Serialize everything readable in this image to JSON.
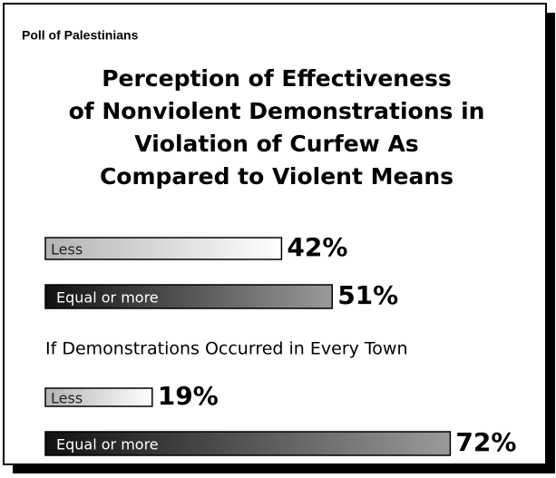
{
  "header": "Poll of Palestinians",
  "chart_data": [
    {
      "type": "bar",
      "title": [
        "Perception of Effectiveness",
        "of Nonviolent Demonstrations in",
        "Violation of Curfew As",
        "Compared to Violent Means"
      ],
      "categories": [
        "Less",
        "Equal or more"
      ],
      "values": [
        42,
        51
      ],
      "value_labels": [
        "42%",
        "51%"
      ],
      "colors": [
        "#b4b4b4",
        "#111111"
      ]
    },
    {
      "type": "bar",
      "title": [
        "If Demonstrations Occurred in Every Town"
      ],
      "categories": [
        "Less",
        "Equal or more"
      ],
      "values": [
        19,
        72
      ],
      "value_labels": [
        "19%",
        "72%"
      ],
      "colors": [
        "#b4b4b4",
        "#111111"
      ]
    }
  ]
}
